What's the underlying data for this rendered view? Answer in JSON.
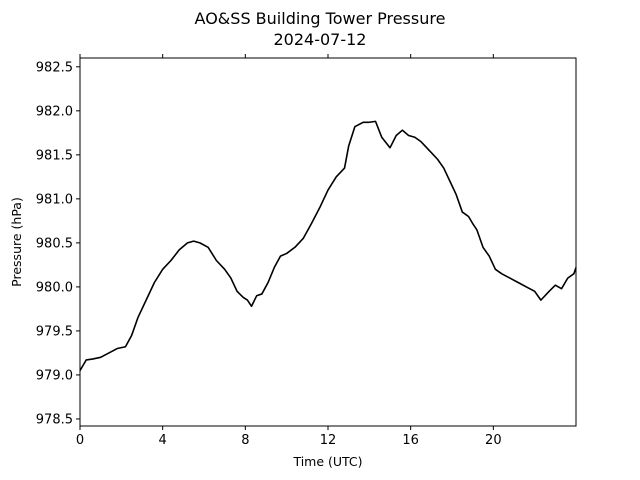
{
  "chart_data": {
    "type": "line",
    "title": "AO&SS Building Tower Pressure",
    "subtitle": "2024-07-12",
    "xlabel": "Time (UTC)",
    "ylabel": "Pressure (hPa)",
    "xlim": [
      0,
      24
    ],
    "ylim": [
      978.42,
      982.6
    ],
    "xticks": [
      0,
      4,
      8,
      12,
      16,
      20
    ],
    "xtick_labels": [
      "0",
      "4",
      "8",
      "12",
      "16",
      "20"
    ],
    "yticks": [
      978.5,
      979.0,
      979.5,
      980.0,
      980.5,
      981.0,
      981.5,
      982.0,
      982.5
    ],
    "ytick_labels": [
      "978.5",
      "979.0",
      "979.5",
      "980.0",
      "980.5",
      "981.0",
      "981.5",
      "982.0",
      "982.5"
    ],
    "grid": false,
    "series": [
      {
        "color": "#000000",
        "x": [
          0,
          0.3,
          0.6,
          1.0,
          1.4,
          1.8,
          2.2,
          2.5,
          2.8,
          3.2,
          3.6,
          4.0,
          4.4,
          4.8,
          5.2,
          5.5,
          5.8,
          6.2,
          6.6,
          7.0,
          7.3,
          7.6,
          7.9,
          8.1,
          8.3,
          8.55,
          8.8,
          9.1,
          9.4,
          9.7,
          10.0,
          10.4,
          10.8,
          11.2,
          11.6,
          12.0,
          12.4,
          12.8,
          13.0,
          13.3,
          13.7,
          14.0,
          14.3,
          14.6,
          15.0,
          15.3,
          15.6,
          15.9,
          16.2,
          16.5,
          16.9,
          17.3,
          17.6,
          17.9,
          18.2,
          18.5,
          18.8,
          19.0,
          19.2,
          19.5,
          19.8,
          20.1,
          20.4,
          20.8,
          21.2,
          21.6,
          22.0,
          22.3,
          22.7,
          23.0,
          23.3,
          23.6,
          23.9,
          24.0
        ],
        "y": [
          979.05,
          979.17,
          979.18,
          979.2,
          979.25,
          979.3,
          979.32,
          979.45,
          979.65,
          979.85,
          980.05,
          980.2,
          980.3,
          980.42,
          980.5,
          980.52,
          980.5,
          980.45,
          980.3,
          980.2,
          980.1,
          979.95,
          979.88,
          979.85,
          979.78,
          979.9,
          979.92,
          980.05,
          980.22,
          980.35,
          980.38,
          980.45,
          980.55,
          980.72,
          980.9,
          981.1,
          981.25,
          981.35,
          981.6,
          981.82,
          981.87,
          981.87,
          981.88,
          981.7,
          981.58,
          981.72,
          981.78,
          981.72,
          981.7,
          981.65,
          981.55,
          981.45,
          981.35,
          981.2,
          981.05,
          980.85,
          980.8,
          980.72,
          980.65,
          980.45,
          980.35,
          980.2,
          980.15,
          980.1,
          980.05,
          980.0,
          979.95,
          979.85,
          979.95,
          980.02,
          979.98,
          980.1,
          980.15,
          980.22
        ]
      }
    ]
  }
}
